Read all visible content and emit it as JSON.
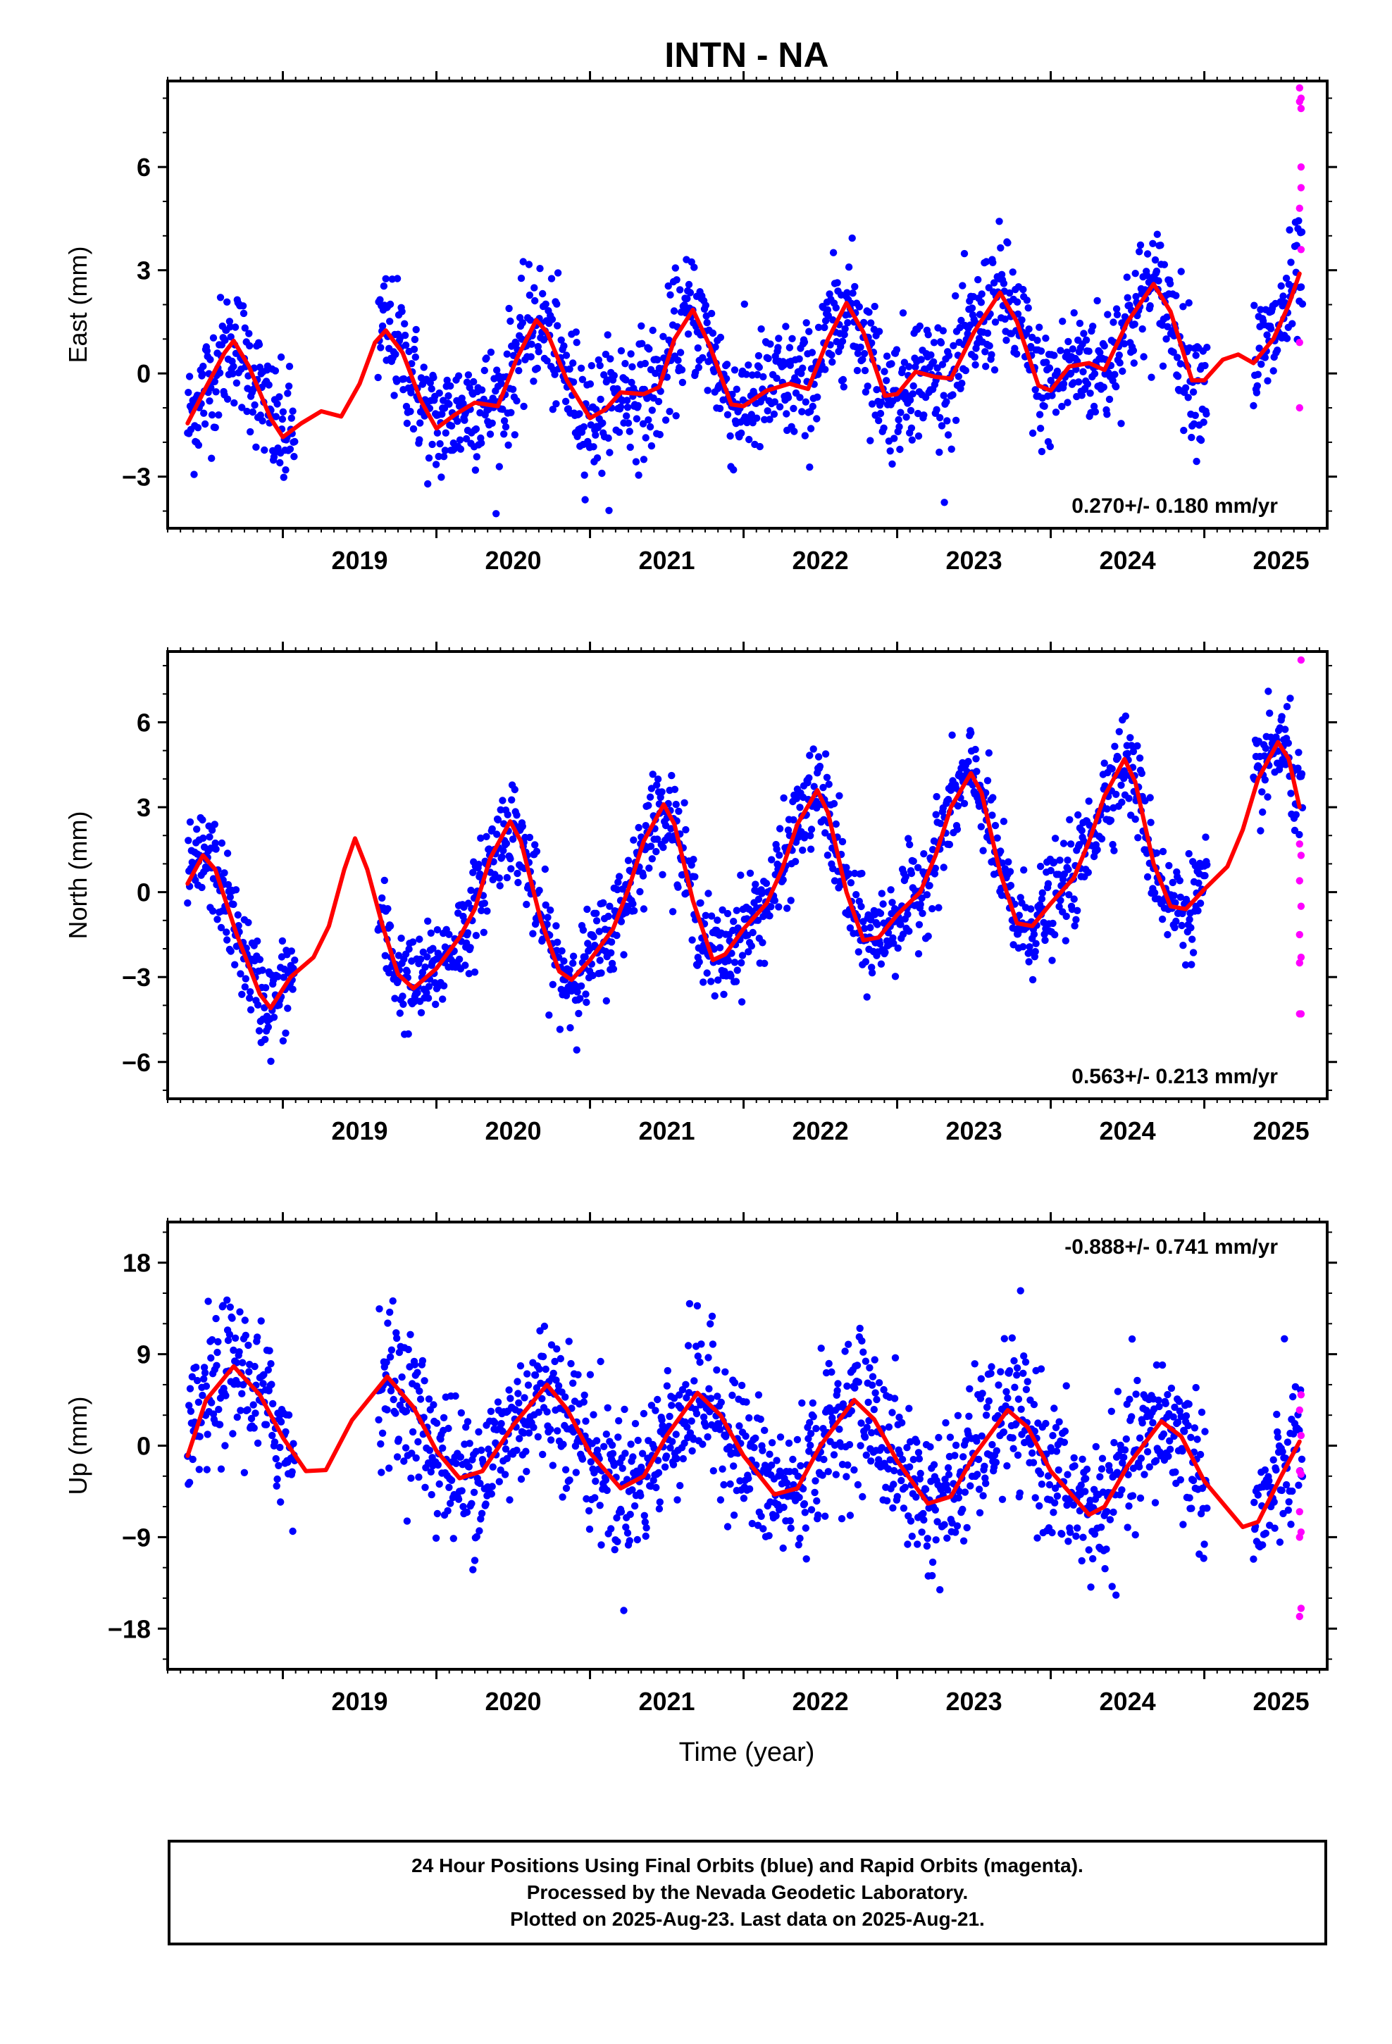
{
  "title": "INTN - NA",
  "xlabel": "Time (year)",
  "colors": {
    "final": "#0000ff",
    "rapid": "#ff00ff",
    "model": "#ff0000",
    "axis": "#000000"
  },
  "footer": {
    "line1": "24 Hour Positions Using Final Orbits (blue) and Rapid Orbits (magenta).",
    "line2": "Processed by the Nevada Geodetic Laboratory.",
    "line3": "Plotted on 2025-Aug-23. Last data on 2025-Aug-21."
  },
  "chart_data": [
    {
      "type": "scatter",
      "component": "east",
      "ylabel": "East (mm)",
      "rate_label": "0.270+/- 0.180 mm/yr",
      "rate_position": "bottom-right",
      "xlim": [
        2018.25,
        2025.8
      ],
      "ylim": [
        -4.5,
        8.5
      ],
      "xticks": [
        2019,
        2020,
        2021,
        2022,
        2023,
        2024,
        2025
      ],
      "yticks": [
        -3,
        0,
        3,
        6
      ],
      "series": [
        {
          "name": "Final Orbits",
          "kind": "points",
          "color": "#0000ff",
          "segments": [
            [
              2018.38,
              2019.08
            ],
            [
              2019.62,
              2025.02
            ],
            [
              2025.32,
              2025.64
            ]
          ],
          "amplitude": 1.5,
          "secular_rate": 0.27,
          "offset": -0.95,
          "noise": 0.9
        },
        {
          "name": "Rapid Orbits",
          "kind": "points",
          "color": "#ff00ff",
          "points": [
            [
              2025.62,
              7.9
            ],
            [
              2025.62,
              8.3
            ],
            [
              2025.63,
              8.0
            ],
            [
              2025.63,
              7.7
            ],
            [
              2025.63,
              6.0
            ],
            [
              2025.63,
              5.4
            ],
            [
              2025.62,
              4.8
            ],
            [
              2025.63,
              3.6
            ],
            [
              2025.62,
              0.9
            ],
            [
              2025.62,
              -1.0
            ]
          ]
        },
        {
          "name": "Model",
          "kind": "line",
          "color": "#ff0000",
          "points": [
            [
              2018.38,
              -1.45
            ],
            [
              2018.5,
              -0.4
            ],
            [
              2018.62,
              0.6
            ],
            [
              2018.68,
              0.95
            ],
            [
              2018.78,
              0.2
            ],
            [
              2018.92,
              -1.3
            ],
            [
              2019.0,
              -1.85
            ],
            [
              2019.12,
              -1.45
            ],
            [
              2019.25,
              -1.1
            ],
            [
              2019.38,
              -1.25
            ],
            [
              2019.5,
              -0.3
            ],
            [
              2019.6,
              0.9
            ],
            [
              2019.67,
              1.25
            ],
            [
              2019.78,
              0.6
            ],
            [
              2019.9,
              -0.8
            ],
            [
              2020.0,
              -1.6
            ],
            [
              2020.12,
              -1.2
            ],
            [
              2020.25,
              -0.85
            ],
            [
              2020.4,
              -0.95
            ],
            [
              2020.52,
              0.4
            ],
            [
              2020.65,
              1.55
            ],
            [
              2020.72,
              1.2
            ],
            [
              2020.85,
              -0.2
            ],
            [
              2021.0,
              -1.3
            ],
            [
              2021.1,
              -1.05
            ],
            [
              2021.2,
              -0.55
            ],
            [
              2021.35,
              -0.6
            ],
            [
              2021.45,
              -0.4
            ],
            [
              2021.55,
              1.0
            ],
            [
              2021.67,
              1.85
            ],
            [
              2021.78,
              0.8
            ],
            [
              2021.92,
              -0.9
            ],
            [
              2022.0,
              -0.95
            ],
            [
              2022.15,
              -0.5
            ],
            [
              2022.3,
              -0.3
            ],
            [
              2022.42,
              -0.45
            ],
            [
              2022.55,
              1.0
            ],
            [
              2022.67,
              2.05
            ],
            [
              2022.78,
              1.2
            ],
            [
              2022.92,
              -0.65
            ],
            [
              2023.0,
              -0.6
            ],
            [
              2023.12,
              0.05
            ],
            [
              2023.25,
              -0.1
            ],
            [
              2023.35,
              -0.15
            ],
            [
              2023.5,
              1.2
            ],
            [
              2023.67,
              2.35
            ],
            [
              2023.78,
              1.5
            ],
            [
              2023.92,
              -0.35
            ],
            [
              2024.0,
              -0.5
            ],
            [
              2024.12,
              0.2
            ],
            [
              2024.25,
              0.3
            ],
            [
              2024.35,
              0.1
            ],
            [
              2024.5,
              1.5
            ],
            [
              2024.67,
              2.6
            ],
            [
              2024.78,
              1.8
            ],
            [
              2024.92,
              -0.2
            ],
            [
              2025.0,
              -0.2
            ],
            [
              2025.12,
              0.4
            ],
            [
              2025.22,
              0.55
            ],
            [
              2025.32,
              0.3
            ],
            [
              2025.45,
              1.0
            ],
            [
              2025.55,
              2.0
            ],
            [
              2025.62,
              2.9
            ]
          ]
        }
      ]
    },
    {
      "type": "scatter",
      "component": "north",
      "ylabel": "North (mm)",
      "rate_label": "0.563+/- 0.213 mm/yr",
      "rate_position": "bottom-right",
      "xlim": [
        2018.25,
        2025.8
      ],
      "ylim": [
        -7.3,
        8.5
      ],
      "xticks": [
        2019,
        2020,
        2021,
        2022,
        2023,
        2024,
        2025
      ],
      "yticks": [
        -6,
        -3,
        0,
        3,
        6
      ],
      "series": [
        {
          "name": "Final Orbits",
          "kind": "points",
          "color": "#0000ff",
          "segments": [
            [
              2018.38,
              2019.08
            ],
            [
              2019.62,
              2025.02
            ],
            [
              2025.32,
              2025.64
            ]
          ],
          "amplitude": 3.2,
          "secular_rate": 0.56,
          "offset": -0.6,
          "noise": 0.85
        },
        {
          "name": "Rapid Orbits",
          "kind": "points",
          "color": "#ff00ff",
          "points": [
            [
              2025.63,
              8.2
            ],
            [
              2025.62,
              1.7
            ],
            [
              2025.63,
              1.3
            ],
            [
              2025.62,
              0.4
            ],
            [
              2025.63,
              -0.5
            ],
            [
              2025.62,
              -1.5
            ],
            [
              2025.63,
              -2.3
            ],
            [
              2025.62,
              -2.5
            ],
            [
              2025.63,
              -4.3
            ],
            [
              2025.62,
              -4.3
            ]
          ]
        },
        {
          "name": "Model",
          "kind": "line",
          "color": "#ff0000",
          "points": [
            [
              2018.38,
              0.3
            ],
            [
              2018.48,
              1.3
            ],
            [
              2018.56,
              0.8
            ],
            [
              2018.7,
              -1.5
            ],
            [
              2018.85,
              -3.6
            ],
            [
              2018.92,
              -4.1
            ],
            [
              2019.05,
              -3.0
            ],
            [
              2019.2,
              -2.3
            ],
            [
              2019.3,
              -1.2
            ],
            [
              2019.4,
              0.8
            ],
            [
              2019.47,
              1.9
            ],
            [
              2019.55,
              0.8
            ],
            [
              2019.65,
              -1.2
            ],
            [
              2019.75,
              -2.9
            ],
            [
              2019.85,
              -3.4
            ],
            [
              2020.0,
              -2.7
            ],
            [
              2020.15,
              -1.6
            ],
            [
              2020.25,
              -0.6
            ],
            [
              2020.35,
              1.2
            ],
            [
              2020.48,
              2.5
            ],
            [
              2020.55,
              1.8
            ],
            [
              2020.68,
              -1.0
            ],
            [
              2020.8,
              -2.8
            ],
            [
              2020.88,
              -3.1
            ],
            [
              2021.0,
              -2.4
            ],
            [
              2021.15,
              -1.3
            ],
            [
              2021.25,
              0.1
            ],
            [
              2021.35,
              1.8
            ],
            [
              2021.48,
              3.1
            ],
            [
              2021.55,
              2.4
            ],
            [
              2021.67,
              -0.3
            ],
            [
              2021.8,
              -2.4
            ],
            [
              2021.88,
              -2.2
            ],
            [
              2022.0,
              -1.3
            ],
            [
              2022.15,
              -0.4
            ],
            [
              2022.25,
              0.8
            ],
            [
              2022.35,
              2.4
            ],
            [
              2022.48,
              3.6
            ],
            [
              2022.55,
              2.8
            ],
            [
              2022.67,
              0.0
            ],
            [
              2022.78,
              -1.7
            ],
            [
              2022.88,
              -1.6
            ],
            [
              2023.0,
              -0.8
            ],
            [
              2023.15,
              0.0
            ],
            [
              2023.25,
              1.3
            ],
            [
              2023.35,
              3.0
            ],
            [
              2023.48,
              4.2
            ],
            [
              2023.55,
              3.5
            ],
            [
              2023.67,
              0.7
            ],
            [
              2023.78,
              -1.1
            ],
            [
              2023.88,
              -1.2
            ],
            [
              2024.0,
              -0.4
            ],
            [
              2024.15,
              0.5
            ],
            [
              2024.25,
              1.8
            ],
            [
              2024.35,
              3.4
            ],
            [
              2024.48,
              4.7
            ],
            [
              2024.55,
              3.9
            ],
            [
              2024.67,
              1.0
            ],
            [
              2024.78,
              -0.5
            ],
            [
              2024.88,
              -0.6
            ],
            [
              2025.0,
              0.1
            ],
            [
              2025.15,
              0.9
            ],
            [
              2025.25,
              2.2
            ],
            [
              2025.35,
              4.0
            ],
            [
              2025.48,
              5.3
            ],
            [
              2025.55,
              4.7
            ],
            [
              2025.62,
              3.0
            ]
          ]
        }
      ]
    },
    {
      "type": "scatter",
      "component": "up",
      "ylabel": "Up (mm)",
      "rate_label": "-0.888+/- 0.741 mm/yr",
      "rate_position": "top-right",
      "xlim": [
        2018.25,
        2025.8
      ],
      "ylim": [
        -22,
        22
      ],
      "xticks": [
        2019,
        2020,
        2021,
        2022,
        2023,
        2024,
        2025
      ],
      "yticks": [
        -18,
        -9,
        0,
        9,
        18
      ],
      "series": [
        {
          "name": "Final Orbits",
          "kind": "points",
          "color": "#0000ff",
          "segments": [
            [
              2018.38,
              2019.08
            ],
            [
              2019.62,
              2025.02
            ],
            [
              2025.32,
              2025.64
            ]
          ],
          "amplitude": 5.5,
          "secular_rate": -0.89,
          "offset": 2.5,
          "noise": 3.6
        },
        {
          "name": "Rapid Orbits",
          "kind": "points",
          "color": "#ff00ff",
          "points": [
            [
              2025.63,
              5.0
            ],
            [
              2025.62,
              3.5
            ],
            [
              2025.63,
              1.0
            ],
            [
              2025.62,
              -2.5
            ],
            [
              2025.63,
              -2.8
            ],
            [
              2025.62,
              -6.5
            ],
            [
              2025.63,
              -8.5
            ],
            [
              2025.62,
              -9.0
            ],
            [
              2025.63,
              -16.0
            ],
            [
              2025.62,
              -16.8
            ]
          ]
        },
        {
          "name": "Model",
          "kind": "line",
          "color": "#ff0000",
          "points": [
            [
              2018.38,
              -1.0
            ],
            [
              2018.5,
              4.5
            ],
            [
              2018.68,
              7.8
            ],
            [
              2018.85,
              5.0
            ],
            [
              2019.0,
              0.8
            ],
            [
              2019.15,
              -2.5
            ],
            [
              2019.28,
              -2.4
            ],
            [
              2019.45,
              2.5
            ],
            [
              2019.68,
              6.8
            ],
            [
              2019.85,
              3.8
            ],
            [
              2020.0,
              -0.5
            ],
            [
              2020.15,
              -3.2
            ],
            [
              2020.3,
              -2.5
            ],
            [
              2020.5,
              2.0
            ],
            [
              2020.72,
              6.0
            ],
            [
              2020.85,
              3.6
            ],
            [
              2021.0,
              -0.7
            ],
            [
              2021.2,
              -4.2
            ],
            [
              2021.35,
              -3.0
            ],
            [
              2021.5,
              1.0
            ],
            [
              2021.7,
              5.2
            ],
            [
              2021.85,
              3.0
            ],
            [
              2022.0,
              -1.0
            ],
            [
              2022.2,
              -4.8
            ],
            [
              2022.35,
              -4.2
            ],
            [
              2022.5,
              0.0
            ],
            [
              2022.72,
              4.5
            ],
            [
              2022.85,
              2.6
            ],
            [
              2023.0,
              -1.5
            ],
            [
              2023.2,
              -5.7
            ],
            [
              2023.35,
              -5.0
            ],
            [
              2023.5,
              -1.0
            ],
            [
              2023.72,
              3.5
            ],
            [
              2023.85,
              1.8
            ],
            [
              2024.0,
              -2.5
            ],
            [
              2024.25,
              -6.8
            ],
            [
              2024.35,
              -6.0
            ],
            [
              2024.5,
              -2.0
            ],
            [
              2024.72,
              2.4
            ],
            [
              2024.85,
              0.9
            ],
            [
              2025.0,
              -3.5
            ],
            [
              2025.25,
              -8.0
            ],
            [
              2025.35,
              -7.5
            ],
            [
              2025.5,
              -3.0
            ],
            [
              2025.62,
              0.4
            ]
          ]
        }
      ]
    }
  ]
}
